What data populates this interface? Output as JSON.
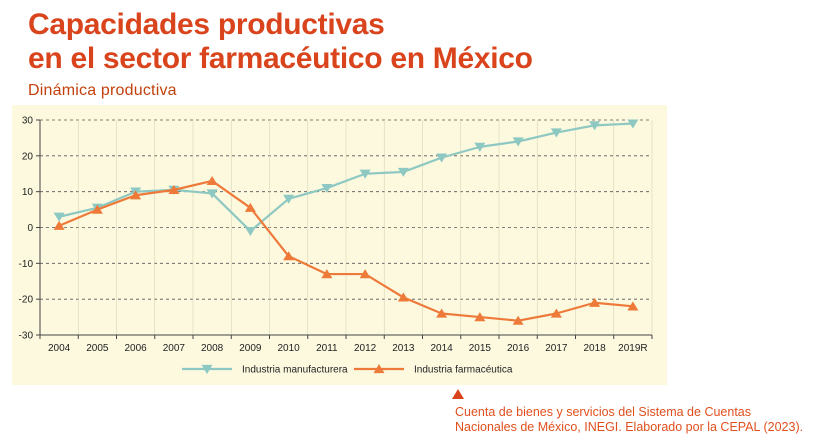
{
  "slide": {
    "title_line1": "Capacidades productivas",
    "title_line2": "en el sector farmacéutico en México",
    "section": "Dinámica productiva",
    "source_line1": "Cuenta de bienes y servicios del Sistema de Cuentas",
    "source_line2": "Nacionales de México, INEGI. Elaborado por la CEPAL (2023).",
    "source_icon": "triangle-marker-icon"
  },
  "colors": {
    "manufacturing": "#8ec8c2",
    "pharma": "#ee7a3a",
    "title": "#d9441c",
    "panel": "#fcf9df"
  },
  "chart_data": {
    "type": "line",
    "categories": [
      "2004",
      "2005",
      "2006",
      "2007",
      "2008",
      "2009",
      "2010",
      "2011",
      "2012",
      "2013",
      "2014",
      "2015",
      "2016",
      "2017",
      "2018",
      "2019R"
    ],
    "ylim": [
      -30,
      30
    ],
    "yticks": [
      30,
      20,
      10,
      0,
      -10,
      -20,
      -30
    ],
    "grid": true,
    "legend": "bottom",
    "series": [
      {
        "name": "Industria manufacturera",
        "marker": "triangle-down",
        "values": [
          3,
          5.5,
          10,
          10.5,
          9.5,
          -1,
          8,
          11,
          15,
          15.5,
          19.5,
          22.5,
          24,
          26.5,
          28.5,
          29
        ]
      },
      {
        "name": "Industria farmacéutica",
        "marker": "triangle-up",
        "values": [
          0.5,
          5,
          9,
          10.5,
          13,
          5.5,
          -8,
          -13,
          -13,
          -19.5,
          -24,
          -25,
          -26,
          -24,
          -21,
          -22
        ]
      }
    ]
  }
}
